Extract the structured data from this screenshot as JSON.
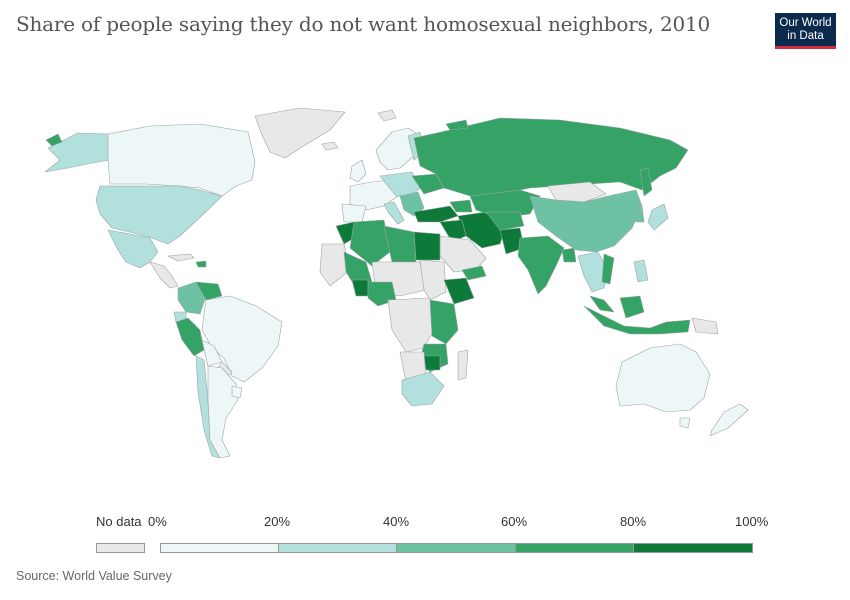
{
  "title": "Share of people saying they do not want homosexual neighbors, 2010",
  "logo": {
    "line1": "Our World",
    "line2": "in Data"
  },
  "colors": {
    "no_data": "#e8e8e8",
    "bin0": "#eef7f8",
    "bin1": "#b2e0dc",
    "bin2": "#6ec2a4",
    "bin3": "#35a365",
    "bin4": "#0d7a3a",
    "border": "#9aa5a5",
    "logo_bg": "#0c2a4d",
    "logo_accent": "#d42b3c"
  },
  "legend": {
    "no_data_label": "No data",
    "ticks": [
      "0%",
      "20%",
      "40%",
      "60%",
      "80%",
      "100%"
    ]
  },
  "source": "Source: World Value Survey"
}
